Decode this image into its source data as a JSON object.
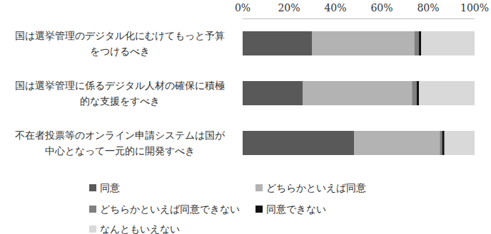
{
  "chart_data": {
    "type": "bar",
    "orientation": "horizontal",
    "stacked": true,
    "grid": false,
    "legend": "bottom",
    "categories": [
      "国は選挙管理のデジタル化にむけてもっと予算\nをつけるべき",
      "国は選挙管理に係るデジタル人材の確保に積極\n的な支援をすべき",
      "不在者投票等のオンライン申請システムは国が\n中心となって一元的に開発すべき"
    ],
    "series": [
      {
        "name": "同意",
        "color": "#595959",
        "values": [
          30,
          26,
          48
        ]
      },
      {
        "name": "どちらかといえば同意",
        "color": "#b3b3b3",
        "values": [
          44,
          47,
          37
        ]
      },
      {
        "name": "どちらかといえば同意できない",
        "color": "#808080",
        "values": [
          2,
          2,
          1
        ]
      },
      {
        "name": "同意できない",
        "color": "#111111",
        "values": [
          1,
          1,
          1
        ]
      },
      {
        "name": "なんともいえない",
        "color": "#d9d9d9",
        "values": [
          23,
          24,
          13
        ]
      }
    ],
    "xlim": [
      0,
      100
    ],
    "xticks": [
      {
        "value": 0,
        "label": "0%"
      },
      {
        "value": 20,
        "label": "20%"
      },
      {
        "value": 40,
        "label": "40%"
      },
      {
        "value": 60,
        "label": "60%"
      },
      {
        "value": 80,
        "label": "80%"
      },
      {
        "value": 100,
        "label": "100%"
      }
    ]
  }
}
